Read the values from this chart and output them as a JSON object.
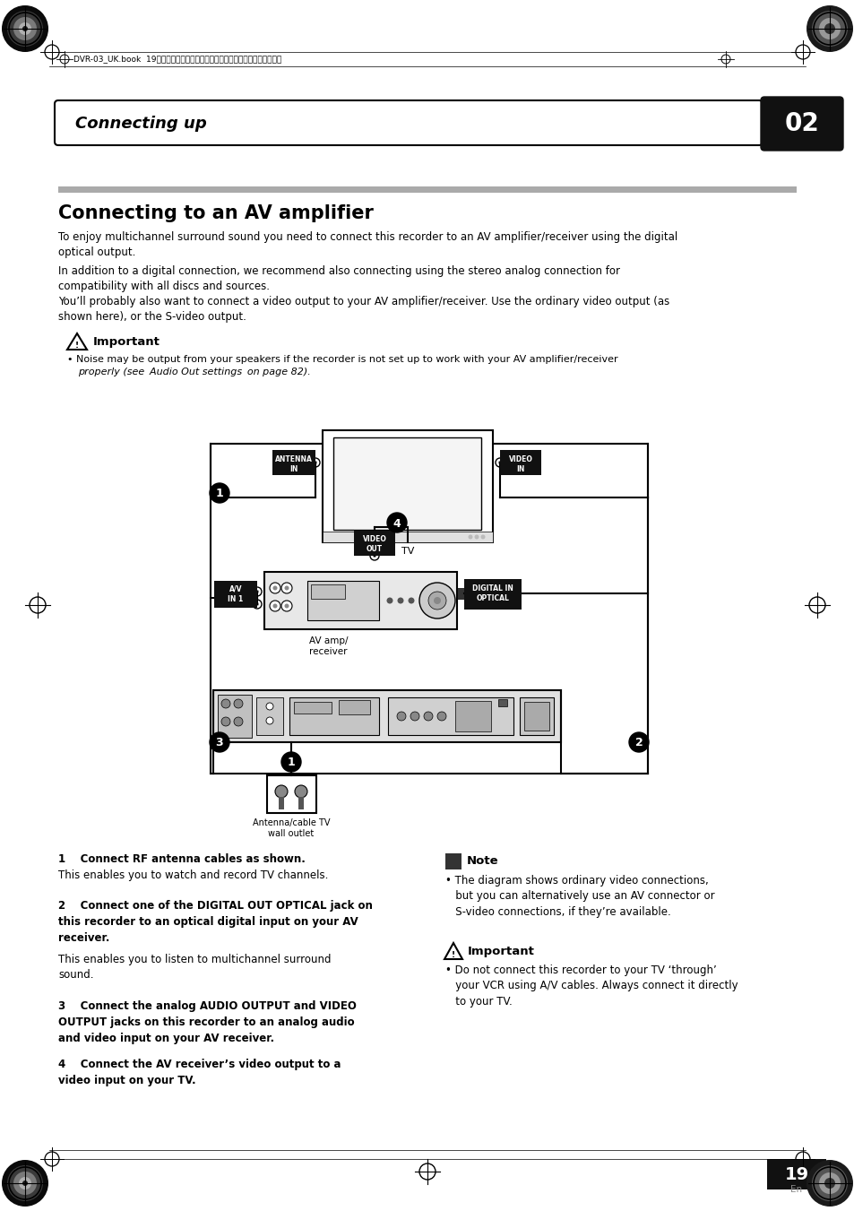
{
  "page_header_text": "DVR-03_UK.book  19ページ　２００３年７月２８日　月曜日　午後６時３０分",
  "section_title": "Connecting up",
  "section_number": "02",
  "main_title": "Connecting to an AV amplifier",
  "para1": "To enjoy multichannel surround sound you need to connect this recorder to an AV amplifier/receiver using the digital\noptical output.",
  "para2": "In addition to a digital connection, we recommend also connecting using the stereo analog connection for\ncompatibility with all discs and sources.",
  "para3": "You’ll probably also want to connect a video output to your AV amplifier/receiver. Use the ordinary video output (as\nshown here), or the S-video output.",
  "imp1_label": "Important",
  "imp1_bullet1": "Noise may be output from your speakers if the recorder is not set up to work with your AV amplifier/receiver",
  "imp1_bullet2": "properly (see  Audio Out settings  on page 82).",
  "note_label": "Note",
  "note_bullet": "• The diagram shows ordinary video connections,\n   but you can alternatively use an AV connector or\n   S-video connections, if they’re available.",
  "imp2_label": "Important",
  "imp2_bullet": "• Do not connect this recorder to your TV ‘through’\n   your VCR using A/V cables. Always connect it directly\n   to your TV.",
  "step1_bold": "1    Connect RF antenna cables as shown.",
  "step1_body": "This enables you to watch and record TV channels.",
  "step2_bold": "2    Connect one of the DIGITAL OUT OPTICAL jack on\nthis recorder to an optical digital input on your AV\nreceiver.",
  "step2_body": "This enables you to listen to multichannel surround\nsound.",
  "step3_bold": "3    Connect the analog AUDIO OUTPUT and VIDEO\nOUTPUT jacks on this recorder to an analog audio\nand video input on your AV receiver.",
  "step4_bold": "4    Connect the AV receiver’s video output to a\nvideo input on your TV.",
  "page_number": "19",
  "page_sub": "En",
  "label_antenna_in": "ANTENNA\nIN",
  "label_video_in": "VIDEO\nIN",
  "label_av_in1": "A/V\nIN 1",
  "label_video_out": "VIDEO\nOUT",
  "label_digital_in": "DIGITAL IN\nOPTICAL",
  "label_tv": "TV",
  "label_av_amp": "AV amp/\nreceiver",
  "label_wall": "Antenna/cable TV\nwall outlet"
}
